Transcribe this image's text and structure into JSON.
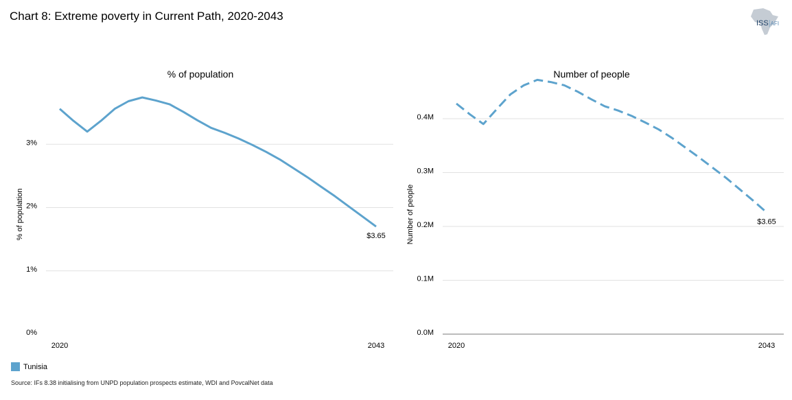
{
  "title": "Chart 8: Extreme poverty in Current Path, 2020-2043",
  "logo": {
    "text_main": "ISS",
    "text_sep": "|",
    "text_sub": "AFI",
    "icon": "africa-map-icon"
  },
  "legend": [
    {
      "label": "Tunisia",
      "color": "#5da3cd"
    }
  ],
  "source": "Source: IFs 8.38 initialising from UNPD population prospects estimate, WDI and PovcalNet data",
  "chart_data": [
    {
      "type": "line",
      "title": "% of population",
      "ylabel": "% of population",
      "xlabel": "",
      "x": [
        2020,
        2021,
        2022,
        2023,
        2024,
        2025,
        2026,
        2027,
        2028,
        2029,
        2030,
        2031,
        2032,
        2033,
        2034,
        2035,
        2036,
        2037,
        2038,
        2039,
        2040,
        2041,
        2042,
        2043
      ],
      "x_tick_labels": [
        "2020",
        "2043"
      ],
      "ylim": [
        0,
        4
      ],
      "y_ticks": [
        0,
        1,
        2,
        3
      ],
      "y_tick_labels": [
        "0%",
        "1%",
        "2%",
        "3%"
      ],
      "series": [
        {
          "color": "#5da3cd",
          "dash": false,
          "values": [
            3.56,
            3.37,
            3.2,
            3.37,
            3.56,
            3.68,
            3.74,
            3.69,
            3.63,
            3.51,
            3.38,
            3.26,
            3.18,
            3.09,
            2.99,
            2.88,
            2.76,
            2.62,
            2.48,
            2.33,
            2.18,
            2.02,
            1.86,
            1.7
          ]
        }
      ],
      "end_label": "$3.65",
      "grid": true
    },
    {
      "type": "line",
      "title": "Number of people",
      "ylabel": "Number of people",
      "xlabel": "",
      "x": [
        2020,
        2021,
        2022,
        2023,
        2024,
        2025,
        2026,
        2027,
        2028,
        2029,
        2030,
        2031,
        2032,
        2033,
        2034,
        2035,
        2036,
        2037,
        2038,
        2039,
        2040,
        2041,
        2042,
        2043
      ],
      "x_tick_labels": [
        "2020",
        "2043"
      ],
      "ylim": [
        0,
        0.47
      ],
      "y_ticks": [
        0,
        0.1,
        0.2,
        0.3,
        0.4
      ],
      "y_tick_labels": [
        "0.0M",
        "0.1M",
        "0.2M",
        "0.3M",
        "0.4M"
      ],
      "series": [
        {
          "color": "#5da3cd",
          "dash": true,
          "values": [
            0.428,
            0.408,
            0.39,
            0.418,
            0.445,
            0.462,
            0.472,
            0.468,
            0.462,
            0.45,
            0.436,
            0.423,
            0.415,
            0.405,
            0.393,
            0.38,
            0.364,
            0.346,
            0.328,
            0.309,
            0.29,
            0.269,
            0.248,
            0.226
          ]
        }
      ],
      "end_label": "$3.65",
      "grid": true
    }
  ]
}
